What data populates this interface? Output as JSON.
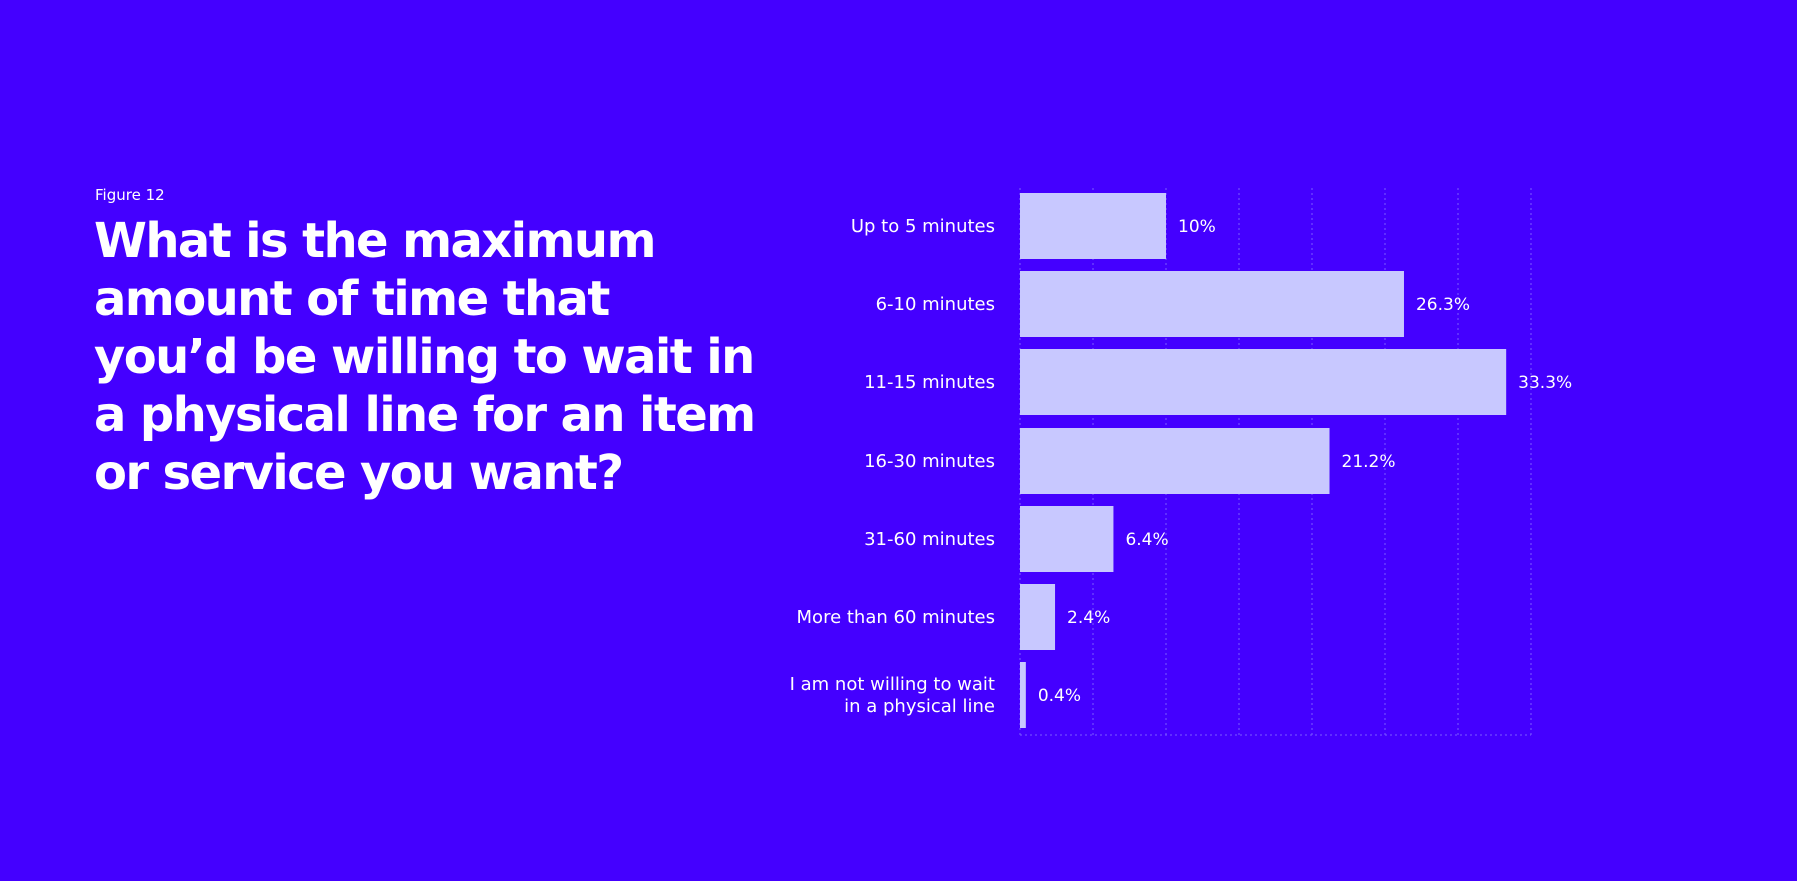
{
  "figure_label": "Figure 12",
  "title_lines": [
    "What is the maximum",
    "amount of time that",
    "you’d be willing to wait in",
    "a physical line for an item",
    "or service you want?"
  ],
  "colors": {
    "background": "#4400FF",
    "bar": "#C8C8FF",
    "text": "#FFFFFF",
    "grid": "#7A5CFF"
  },
  "chart_data": {
    "type": "bar",
    "orientation": "horizontal",
    "title": "What is the maximum amount of time that you’d be willing to wait in a physical line for an item or service you want?",
    "categories": [
      [
        "Up to 5 minutes"
      ],
      [
        "6-10 minutes"
      ],
      [
        "11-15 minutes"
      ],
      [
        "16-30 minutes"
      ],
      [
        "31-60 minutes"
      ],
      [
        "More than 60 minutes"
      ],
      [
        "I am not willing to wait",
        "in a physical line"
      ]
    ],
    "values": [
      10,
      26.3,
      33.3,
      21.2,
      6.4,
      2.4,
      0.4
    ],
    "value_labels": [
      "10%",
      "26.3%",
      "33.3%",
      "21.2%",
      "6.4%",
      "2.4%",
      "0.4%"
    ],
    "unit": "%",
    "xlim": [
      0,
      35
    ],
    "grid": true
  }
}
